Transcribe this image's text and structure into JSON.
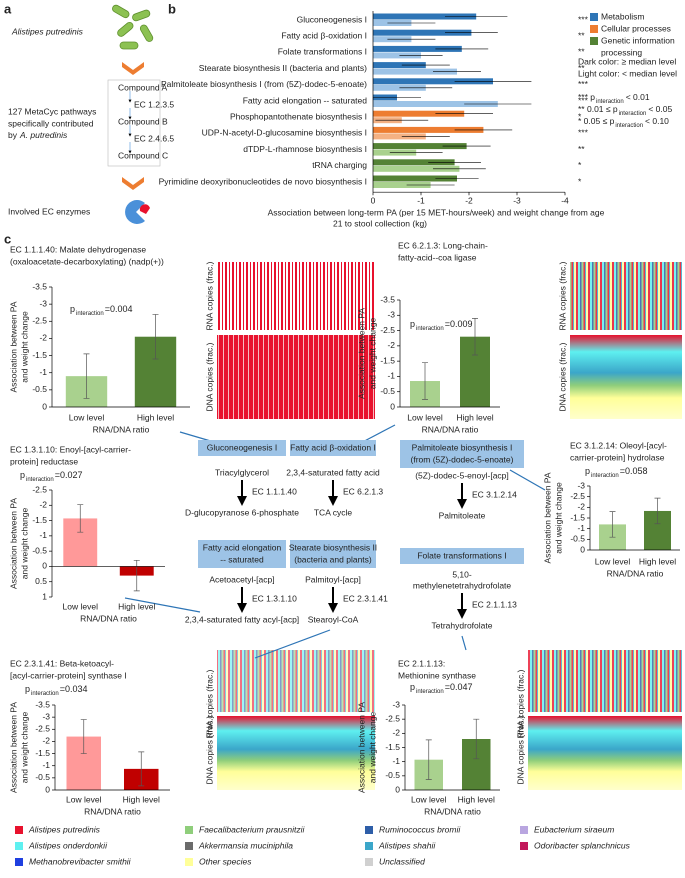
{
  "panel_labels": [
    "a",
    "b",
    "c"
  ],
  "panel_a": {
    "organism": "Alistipes putredinis",
    "pathways_lines": [
      "127 MetaCyc pathways",
      "specifically contributed"
    ],
    "pathways_by": "by",
    "pathways_organism": "A. putredinis",
    "card": [
      "Compound A",
      "EC 1.2.3.5",
      "Compound B",
      "EC 2.4.6.5",
      "Compound C"
    ],
    "enzymes": "Involved EC enzymes"
  },
  "chart_data": [
    {
      "type": "hbar",
      "categories": [
        "Gluconeogenesis I",
        "Fatty acid β-oxidation I",
        "Folate transformations I",
        "Stearate biosynthesis II (bacteria and plants)",
        "Palmitoleate biosynthesis I (from (5Z)-dodec-5-enoate)",
        "Fatty acid elongation -- saturated",
        "Phosphopantothenate biosynthesis I",
        "UDP-N-acetyl-D-glucosamine biosynthesis I",
        "dTDP-L-rhamnose biosynthesis I",
        "tRNA charging",
        "Pyrimidine deoxyribonucleotides de novo biosynthesis I"
      ],
      "series": [
        {
          "name": "Dark color: ≥ median level",
          "values": [
            -2.15,
            -2.05,
            -1.85,
            -1.1,
            -2.5,
            -0.5,
            -1.9,
            -2.3,
            -1.95,
            -1.7,
            -1.75
          ],
          "errors": [
            0.65,
            0.55,
            0.55,
            0.5,
            0.8,
            0.5,
            0.6,
            0.6,
            0.5,
            0.55,
            0.45
          ]
        },
        {
          "name": "Light color: < median level",
          "values": [
            -0.8,
            -0.8,
            -1.0,
            -1.75,
            -1.1,
            -2.6,
            -0.6,
            -1.1,
            -0.9,
            -1.8,
            -1.2
          ],
          "errors": [
            0.5,
            0.5,
            0.45,
            0.5,
            0.55,
            0.7,
            0.55,
            0.5,
            0.55,
            0.55,
            0.5
          ]
        }
      ],
      "groups": [
        {
          "name": "Metabolism",
          "colors": [
            "#2e75b6",
            "#9dc3e6"
          ]
        },
        {
          "name": "Cellular processes",
          "colors": [
            "#ed7d31",
            "#f4b183"
          ]
        },
        {
          "name": "Genetic information",
          "name2": "processing",
          "colors": [
            "#548235",
            "#a9d18e"
          ]
        }
      ],
      "category_groups": [
        0,
        0,
        0,
        0,
        0,
        0,
        1,
        1,
        2,
        2,
        2
      ],
      "stars": [
        "***",
        "**",
        "**",
        "**",
        "***",
        "***",
        "*",
        "***",
        "**",
        "*",
        "*"
      ],
      "significance": [
        {
          "prefix": "*** p",
          "sub": "interaction",
          "suffix": "< 0.01"
        },
        {
          "prefix": "** 0.01 ≤ p",
          "sub": "interaction",
          "suffix": "< 0.05"
        },
        {
          "prefix": "* 0.05 ≤ p",
          "sub": "interaction",
          "suffix": "< 0.10"
        }
      ],
      "xlabel": [
        "Association between long-term PA (per 15 MET-hours/week) and weight change from age",
        "21 to stool collection (kg)"
      ],
      "xlim": [
        0,
        -4
      ],
      "xticks": [
        0,
        -1,
        -2,
        -3,
        -4
      ]
    },
    {
      "type": "bar",
      "title": [
        "EC 1.1.1.40: Malate dehydrogenase",
        "(oxaloacetate-decarboxylating) (nadp(+))"
      ],
      "p_label": "p",
      "p_sub": "interaction",
      "p_text": "=0.004",
      "ylabel": [
        "Association between PA",
        "and weight change"
      ],
      "xlabel": "RNA/DNA ratio",
      "categories": [
        "Low level",
        "High level"
      ],
      "values": [
        -0.9,
        -2.05
      ],
      "errors": [
        0.65,
        0.65
      ],
      "colors": [
        "#a9d18e",
        "#548235"
      ],
      "ylim": [
        0,
        -3.5
      ],
      "yticks": [
        0,
        -0.5,
        -1,
        -1.5,
        -2,
        -2.5,
        -3,
        -3.5
      ]
    },
    {
      "type": "bar",
      "title": [
        "EC 6.2.1.3: Long-chain-",
        "fatty-acid--coa ligase"
      ],
      "p_label": "p",
      "p_sub": "interaction",
      "p_text": "=0.009",
      "ylabel": [
        "Association between PA",
        "and weight change"
      ],
      "xlabel": "RNA/DNA ratio",
      "categories": [
        "Low level",
        "High level"
      ],
      "values": [
        -0.85,
        -2.3
      ],
      "errors": [
        0.6,
        0.6
      ],
      "colors": [
        "#a9d18e",
        "#548235"
      ],
      "ylim": [
        0,
        -3.5
      ],
      "yticks": [
        0,
        -0.5,
        -1,
        -1.5,
        -2,
        -2.5,
        -3,
        -3.5
      ]
    },
    {
      "type": "bar",
      "title": [
        "EC 1.3.1.10: Enoyl-[acyl-carrier-",
        "protein] reductase"
      ],
      "p_label": "p",
      "p_sub": "interaction",
      "p_text": "=0.027",
      "ylabel": [
        "Association between PA",
        "and weight change"
      ],
      "xlabel": "RNA/DNA ratio",
      "categories": [
        "Low level",
        "High level"
      ],
      "values": [
        -1.57,
        0.3
      ],
      "errors": [
        0.45,
        0.5
      ],
      "colors": [
        "#ff9999",
        "#c00000"
      ],
      "ylim": [
        1,
        -2.5
      ],
      "yticks": [
        1,
        0.5,
        0,
        -0.5,
        -1,
        -1.5,
        -2,
        -2.5
      ]
    },
    {
      "type": "bar",
      "title": [
        "EC 3.1.2.14: Oleoyl-[acyl-",
        "carrier-protein] hydrolase"
      ],
      "p_label": "p",
      "p_sub": "interaction",
      "p_text": "=0.058",
      "ylabel": [
        "Association between PA",
        "and weight change"
      ],
      "xlabel": "RNA/DNA ratio",
      "categories": [
        "Low level",
        "High level"
      ],
      "values": [
        -1.2,
        -1.83
      ],
      "errors": [
        0.6,
        0.6
      ],
      "colors": [
        "#a9d18e",
        "#548235"
      ],
      "ylim": [
        0,
        -3
      ],
      "yticks": [
        0,
        -0.5,
        -1,
        -1.5,
        -2,
        -2.5,
        -3
      ]
    },
    {
      "type": "bar",
      "title": [
        "EC 2.3.1.41: Beta-ketoacyl-",
        "[acyl-carrier-protein] synthase I"
      ],
      "p_label": "p",
      "p_sub": "interaction",
      "p_text": "=0.034",
      "ylabel": [
        "Association between PA",
        "and weight change"
      ],
      "xlabel": "RNA/DNA ratio",
      "categories": [
        "Low level",
        "High level"
      ],
      "values": [
        -2.2,
        -0.87
      ],
      "errors": [
        0.7,
        0.7
      ],
      "colors": [
        "#ff9999",
        "#c00000"
      ],
      "ylim": [
        0,
        -3.5
      ],
      "yticks": [
        0,
        -0.5,
        -1,
        -1.5,
        -2,
        -2.5,
        -3,
        -3.5
      ]
    },
    {
      "type": "bar",
      "title": [
        "EC 2.1.1.13:",
        "Methionine synthase"
      ],
      "p_label": "p",
      "p_sub": "interaction",
      "p_text": "=0.047",
      "ylabel": [
        "Association between PA",
        "and weight change"
      ],
      "xlabel": "RNA/DNA ratio",
      "categories": [
        "Low level",
        "High level"
      ],
      "values": [
        -1.07,
        -1.8
      ],
      "errors": [
        0.7,
        0.7
      ],
      "colors": [
        "#a9d18e",
        "#548235"
      ],
      "ylim": [
        0,
        -3
      ],
      "yticks": [
        0,
        -0.5,
        -1,
        -1.5,
        -2,
        -2.5,
        -3
      ]
    }
  ],
  "species_axes": {
    "rna": "RNA copies (frac.)",
    "dna": "DNA copies (frac.)"
  },
  "diagram": {
    "rows": [
      [
        {
          "box": [
            "Gluconeogenesis I"
          ],
          "from": [
            "Triacylglycerol"
          ],
          "ec": "EC 1.1.1.40",
          "to": "D-glucopyranose 6-phosphate"
        },
        {
          "box": [
            "Fatty acid β-oxidation I"
          ],
          "from": [
            "2,3,4-saturated fatty acid"
          ],
          "ec": "EC 6.2.1.3",
          "to": "TCA cycle"
        },
        {
          "box": [
            "Palmitoleate biosynthesis I",
            "(from (5Z)-dodec-5-enoate)"
          ],
          "from": [
            "(5Z)-dodec-5-enoyl-[acp]"
          ],
          "ec": "EC 3.1.2.14",
          "to": "Palmitoleate"
        }
      ],
      [
        {
          "box": [
            "Fatty acid elongation",
            "-- saturated"
          ],
          "from": [
            "Acetoacetyl-[acp]"
          ],
          "ec": "EC 1.3.1.10",
          "to": "2,3,4-saturated fatty acyl-[acp]"
        },
        {
          "box": [
            "Stearate biosynthesis II",
            "(bacteria and plants)"
          ],
          "from": [
            "Palmitoyl-[acp]"
          ],
          "ec": "EC 2.3.1.41",
          "to": "Stearoyl-CoA"
        },
        {
          "box": [
            "Folate transformations I"
          ],
          "from": [
            "5,10-",
            "methylenetetrahydrofolate"
          ],
          "ec": "EC 2.1.1.13",
          "to": "Tetrahydrofolate"
        }
      ]
    ]
  },
  "species_legend": [
    {
      "name": "Alistipes putredinis",
      "color": "#e8112d"
    },
    {
      "name": "Faecalibacterium prausnitzii",
      "color": "#8fce7b"
    },
    {
      "name": "Ruminococcus bromii",
      "color": "#2e5ea8"
    },
    {
      "name": "Eubacterium siraeum",
      "color": "#b9a6e0"
    },
    {
      "name": "Alistipes onderdonkii",
      "color": "#5ef0f0"
    },
    {
      "name": "Akkermansia muciniphila",
      "color": "#6b6b6b"
    },
    {
      "name": "Alistipes shahii",
      "color": "#3ba6c9"
    },
    {
      "name": "Odoribacter splanchnicus",
      "color": "#c2185b"
    },
    {
      "name": "Methanobrevibacter smithii",
      "color": "#1f3fe0"
    },
    {
      "name": "Other species",
      "color": "#ffff99"
    },
    {
      "name": "Unclassified",
      "color": "#d0d0d0"
    }
  ]
}
